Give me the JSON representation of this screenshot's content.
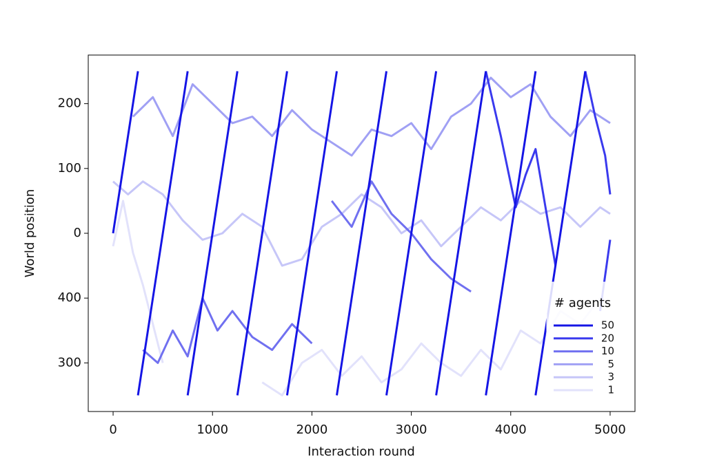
{
  "chart_data": {
    "type": "line",
    "xlabel": "Interaction round",
    "ylabel": "World position",
    "xlim": [
      -250,
      5250
    ],
    "xticks": [
      0,
      1000,
      2000,
      3000,
      4000,
      5000
    ],
    "ylim": [
      -275,
      275
    ],
    "yticks": [
      200,
      100,
      0,
      {
        "value": -100,
        "label": "400"
      },
      {
        "value": -200,
        "label": "300"
      }
    ],
    "legend_title": "# agents",
    "legend_position": "lower right",
    "series": [
      {
        "name": "1",
        "color": "#e2e2fb",
        "x": [
          0,
          100,
          200,
          300,
          400,
          500,
          null,
          1500,
          1700,
          1900,
          2100,
          2300,
          2500,
          2700,
          2900,
          3100,
          3300,
          3500,
          3700,
          3900,
          4100,
          4300,
          4500,
          4700,
          4900,
          5000
        ],
        "values": [
          -20,
          50,
          -30,
          -80,
          -140,
          -200,
          null,
          -230,
          -250,
          -200,
          -180,
          -220,
          -190,
          -230,
          -210,
          -170,
          -200,
          -220,
          -180,
          -210,
          -150,
          -170,
          -120,
          -140,
          -100,
          -110
        ]
      },
      {
        "name": "3",
        "color": "#c6c6f8",
        "x": [
          0,
          150,
          300,
          500,
          700,
          900,
          1100,
          1300,
          1500,
          1700,
          1900,
          2100,
          2300,
          2500,
          2700,
          2900,
          3100,
          3300,
          3500,
          3700,
          3900,
          4100,
          4300,
          4500,
          4700,
          4900,
          5000
        ],
        "values": [
          80,
          60,
          80,
          60,
          20,
          -10,
          0,
          30,
          10,
          -50,
          -40,
          10,
          30,
          60,
          40,
          0,
          20,
          -20,
          10,
          40,
          20,
          50,
          30,
          40,
          10,
          40,
          30
        ]
      },
      {
        "name": "5",
        "color": "#a0a0f4",
        "x": [
          200,
          400,
          600,
          800,
          1000,
          1200,
          1400,
          1600,
          1800,
          2000,
          2200,
          2400,
          2600,
          2800,
          3000,
          3200,
          3400,
          3600,
          3800,
          4000,
          4200,
          4400,
          4600,
          4800,
          5000
        ],
        "values": [
          180,
          210,
          150,
          230,
          200,
          170,
          180,
          150,
          190,
          160,
          140,
          120,
          160,
          150,
          170,
          130,
          180,
          200,
          240,
          210,
          230,
          180,
          150,
          190,
          170
        ]
      },
      {
        "name": "10",
        "color": "#7070f0",
        "x": [
          300,
          450,
          600,
          750,
          900,
          1050,
          1200,
          1400,
          1600,
          1800,
          2000,
          null,
          2200,
          2400,
          2600,
          2800,
          3000,
          3200,
          3400,
          3600
        ],
        "values": [
          -180,
          -200,
          -150,
          -190,
          -100,
          -150,
          -120,
          -160,
          -180,
          -140,
          -170,
          null,
          50,
          10,
          80,
          30,
          0,
          -40,
          -70,
          -90
        ]
      },
      {
        "name": "20",
        "color": "#3a3aee",
        "x": [
          3750,
          3900,
          4050,
          4150,
          4250,
          4350,
          4450,
          null,
          4750,
          4850,
          4950,
          5000,
          null,
          4900,
          5000
        ],
        "values": [
          250,
          150,
          40,
          90,
          130,
          40,
          -50,
          null,
          250,
          180,
          120,
          60,
          null,
          -120,
          -10
        ]
      },
      {
        "name": "50",
        "color": "#1515e5",
        "x": [
          0,
          250,
          null,
          250,
          750,
          null,
          750,
          1250,
          null,
          1250,
          1750,
          null,
          1750,
          2250,
          null,
          2250,
          2750,
          null,
          2750,
          3250,
          null,
          3250,
          3750,
          null,
          3750,
          4250,
          null,
          4250,
          4750
        ],
        "values": [
          0,
          250,
          null,
          -250,
          250,
          null,
          -250,
          250,
          null,
          -250,
          250,
          null,
          -250,
          250,
          null,
          -250,
          250,
          null,
          -250,
          250,
          null,
          -250,
          250,
          null,
          -250,
          250,
          null,
          -250,
          250
        ]
      }
    ]
  }
}
